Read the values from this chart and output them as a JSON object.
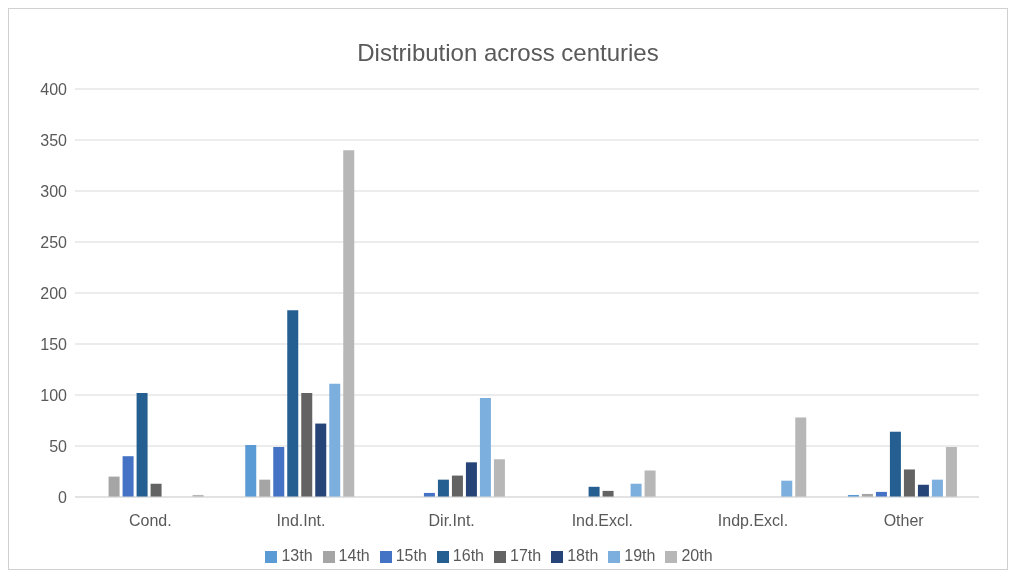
{
  "chart_data": {
    "type": "bar",
    "title": "Distribution across centuries",
    "categories": [
      "Cond.",
      "Ind.Int.",
      "Dir.Int.",
      "Ind.Excl.",
      "Indp.Excl.",
      "Other"
    ],
    "series": [
      {
        "name": "13th",
        "color": "#5b9bd5",
        "values": [
          0,
          51,
          0,
          0,
          0,
          2
        ]
      },
      {
        "name": "14th",
        "color": "#a5a5a5",
        "values": [
          20,
          17,
          0,
          0,
          0,
          3
        ]
      },
      {
        "name": "15th",
        "color": "#4472c4",
        "values": [
          40,
          49,
          4,
          0,
          0,
          5
        ]
      },
      {
        "name": "16th",
        "color": "#255e91",
        "values": [
          102,
          183,
          17,
          10,
          0,
          64
        ]
      },
      {
        "name": "17th",
        "color": "#636363",
        "values": [
          13,
          102,
          21,
          6,
          0,
          27
        ]
      },
      {
        "name": "18th",
        "color": "#264478",
        "values": [
          0,
          72,
          34,
          0,
          0,
          12
        ]
      },
      {
        "name": "19th",
        "color": "#7cafdd",
        "values": [
          0,
          111,
          97,
          13,
          16,
          17
        ]
      },
      {
        "name": "20th",
        "color": "#b7b7b7",
        "values": [
          2,
          340,
          37,
          26,
          78,
          49
        ]
      }
    ],
    "ylim": [
      0,
      400
    ],
    "yticks": [
      0,
      50,
      100,
      150,
      200,
      250,
      300,
      350,
      400
    ],
    "grid": "y",
    "legend": "bottom"
  }
}
